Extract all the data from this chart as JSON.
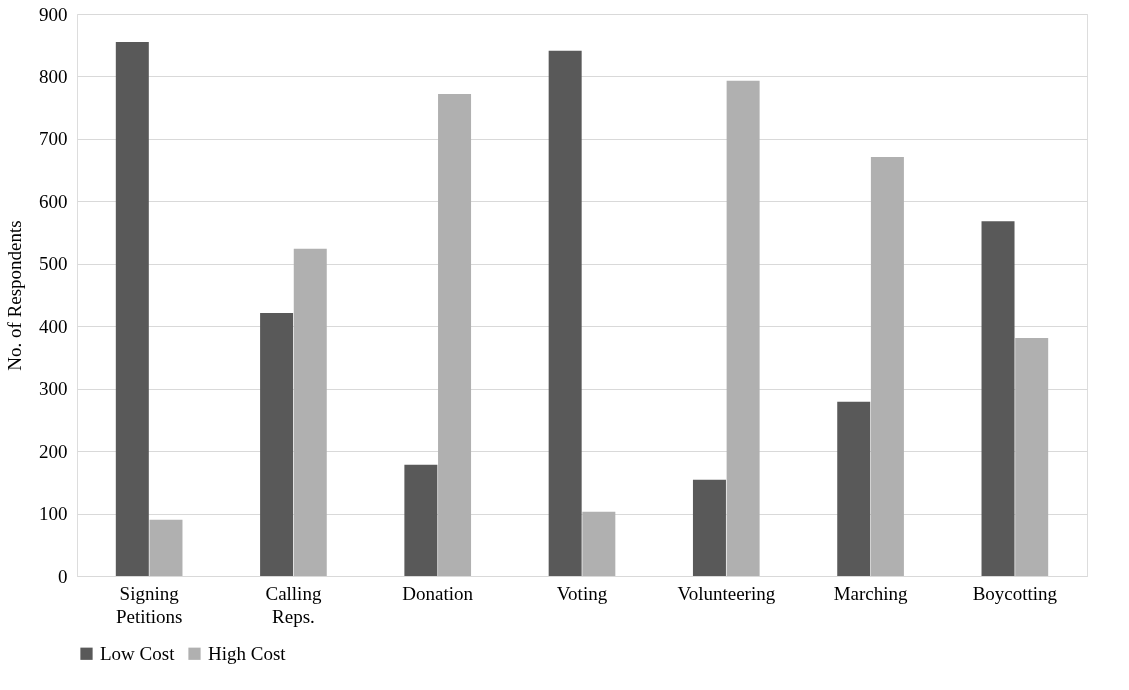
{
  "chart_data": {
    "type": "bar",
    "ylabel": "No. of Respondents",
    "categories": [
      "Signing Petitions",
      "Calling Reps.",
      "Donation",
      "Voting",
      "Volunteering",
      "Marching",
      "Boycotting"
    ],
    "series": [
      {
        "name": "Low Cost",
        "color": "#595959",
        "values": [
          855,
          421,
          178,
          841,
          154,
          279,
          568
        ]
      },
      {
        "name": "High Cost",
        "color": "#b0b0b0",
        "values": [
          90,
          524,
          772,
          103,
          793,
          671,
          381
        ]
      }
    ],
    "ylim": [
      0,
      900
    ],
    "yticks": [
      0,
      100,
      200,
      300,
      400,
      500,
      600,
      700,
      800,
      900
    ],
    "grid": "y",
    "legend": "bottom"
  }
}
